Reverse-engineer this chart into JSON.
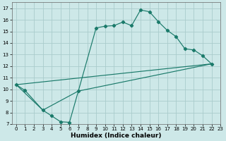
{
  "xlabel": "Humidex (Indice chaleur)",
  "xlim": [
    -0.5,
    23
  ],
  "ylim": [
    7,
    17.5
  ],
  "xticks": [
    0,
    1,
    2,
    3,
    4,
    5,
    6,
    7,
    8,
    9,
    10,
    11,
    12,
    13,
    14,
    15,
    16,
    17,
    18,
    19,
    20,
    21,
    22,
    23
  ],
  "yticks": [
    7,
    8,
    9,
    10,
    11,
    12,
    13,
    14,
    15,
    16,
    17
  ],
  "bg_color": "#cde8e8",
  "grid_color": "#aacccc",
  "line_color": "#1a7a6a",
  "line1_x": [
    0,
    1,
    3,
    4,
    5,
    6,
    7,
    9,
    10,
    11,
    12,
    13,
    14,
    15,
    16,
    17,
    18,
    19,
    20,
    21,
    22
  ],
  "line1_y": [
    10.4,
    9.9,
    8.2,
    7.7,
    7.2,
    7.15,
    9.85,
    15.3,
    15.45,
    15.5,
    15.8,
    15.5,
    16.85,
    16.7,
    15.85,
    15.1,
    14.55,
    13.5,
    13.4,
    12.9,
    12.2
  ],
  "line2_x": [
    0,
    3,
    7,
    22
  ],
  "line2_y": [
    10.4,
    8.2,
    9.85,
    12.2
  ],
  "line3_x": [
    0,
    22
  ],
  "line3_y": [
    10.4,
    12.2
  ]
}
